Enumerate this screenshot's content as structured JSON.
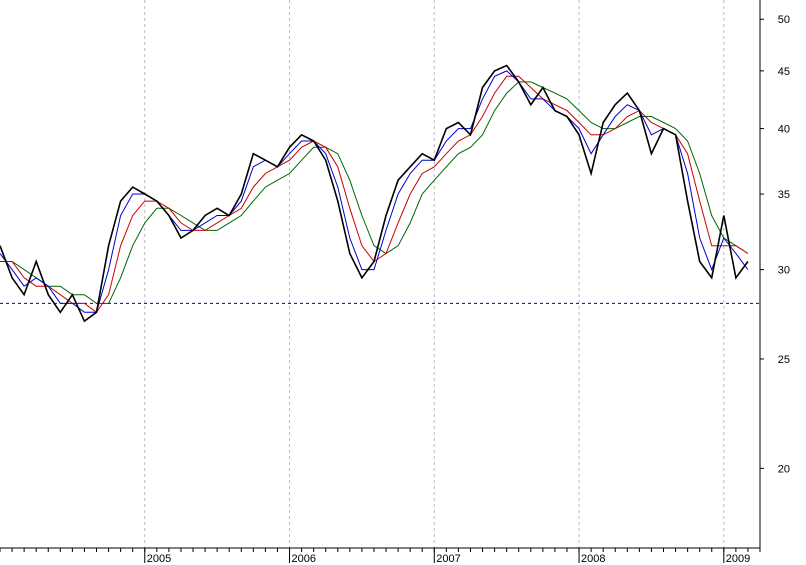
{
  "chart_data": {
    "type": "line",
    "title": "",
    "xlabel": "",
    "ylabel": "",
    "y_scale": "log",
    "ylim": [
      17,
      52
    ],
    "y_ticks": [
      20,
      25,
      30,
      35,
      40,
      45,
      50
    ],
    "x_ticks": [
      "2005",
      "2006",
      "2007",
      "2008",
      "2009"
    ],
    "x_range": [
      "2004-01",
      "2009-04"
    ],
    "grid": {
      "vertical": true,
      "horizontal": false
    },
    "reference_line": {
      "value": 28,
      "color": "#0000cc",
      "style": "dashed"
    },
    "series": [
      {
        "color": "#000000",
        "x": [
          "2004-01",
          "2004-02",
          "2004-03",
          "2004-04",
          "2004-05",
          "2004-06",
          "2004-07",
          "2004-08",
          "2004-09",
          "2004-10",
          "2004-11",
          "2004-12",
          "2005-01",
          "2005-02",
          "2005-03",
          "2005-04",
          "2005-05",
          "2005-06",
          "2005-07",
          "2005-08",
          "2005-09",
          "2005-10",
          "2005-11",
          "2005-12",
          "2006-01",
          "2006-02",
          "2006-03",
          "2006-04",
          "2006-05",
          "2006-06",
          "2006-07",
          "2006-08",
          "2006-09",
          "2006-10",
          "2006-11",
          "2006-12",
          "2007-01",
          "2007-02",
          "2007-03",
          "2007-04",
          "2007-05",
          "2007-06",
          "2007-07",
          "2007-08",
          "2007-09",
          "2007-10",
          "2007-11",
          "2007-12",
          "2008-01",
          "2008-02",
          "2008-03",
          "2008-04",
          "2008-05",
          "2008-06",
          "2008-07",
          "2008-08",
          "2008-09",
          "2008-10",
          "2008-11",
          "2008-12",
          "2009-01",
          "2009-02",
          "2009-03"
        ],
        "values": [
          31.5,
          29.5,
          28.5,
          30.5,
          28.5,
          27.5,
          28.5,
          27.0,
          27.5,
          31.5,
          34.5,
          35.5,
          35.0,
          34.5,
          33.5,
          32.0,
          32.5,
          33.5,
          34.0,
          33.5,
          35.0,
          38.0,
          37.5,
          37.0,
          38.5,
          39.5,
          39.0,
          37.5,
          34.5,
          31.0,
          29.5,
          30.5,
          33.5,
          36.0,
          37.0,
          38.0,
          37.5,
          40.0,
          40.5,
          39.5,
          43.5,
          45.0,
          45.5,
          44.0,
          42.0,
          43.5,
          41.5,
          41.0,
          39.5,
          36.5,
          40.5,
          42.0,
          43.0,
          41.5,
          38.0,
          40.0,
          39.5,
          34.5,
          30.5,
          29.5,
          33.5,
          29.5,
          30.5
        ]
      },
      {
        "color": "#0000cc",
        "values": [
          31.0,
          30.0,
          29.0,
          29.5,
          29.0,
          28.0,
          28.0,
          27.5,
          27.5,
          30.0,
          33.5,
          35.0,
          35.0,
          34.5,
          33.5,
          32.5,
          32.5,
          33.0,
          33.5,
          33.5,
          34.5,
          37.0,
          37.5,
          37.0,
          38.0,
          39.0,
          39.0,
          38.0,
          35.5,
          32.0,
          30.0,
          30.0,
          32.5,
          35.0,
          36.5,
          37.5,
          37.5,
          39.0,
          40.0,
          40.0,
          42.5,
          44.5,
          45.0,
          44.0,
          42.5,
          42.5,
          41.5,
          41.0,
          40.0,
          38.0,
          39.5,
          41.0,
          42.0,
          41.5,
          39.5,
          40.0,
          39.5,
          36.5,
          32.0,
          30.0,
          32.0,
          31.0,
          30.0
        ]
      },
      {
        "color": "#cc0000",
        "values": [
          30.5,
          30.5,
          29.5,
          29.0,
          29.0,
          28.5,
          28.0,
          28.0,
          27.5,
          28.5,
          31.5,
          33.5,
          34.5,
          34.5,
          34.0,
          33.0,
          32.5,
          32.5,
          33.0,
          33.5,
          34.0,
          35.5,
          36.5,
          37.0,
          37.5,
          38.5,
          39.0,
          38.5,
          37.0,
          34.0,
          31.5,
          30.5,
          31.0,
          33.0,
          35.0,
          36.5,
          37.0,
          38.0,
          39.0,
          39.5,
          41.0,
          43.0,
          44.5,
          44.5,
          43.5,
          42.5,
          42.0,
          41.5,
          40.5,
          39.5,
          39.5,
          40.0,
          41.0,
          41.5,
          40.5,
          40.0,
          39.5,
          38.0,
          34.5,
          31.5,
          31.5,
          31.5,
          31.0
        ]
      },
      {
        "color": "#006600",
        "values": [
          30.5,
          30.5,
          30.0,
          29.5,
          29.0,
          29.0,
          28.5,
          28.5,
          28.0,
          28.0,
          29.5,
          31.5,
          33.0,
          34.0,
          34.0,
          33.5,
          33.0,
          32.5,
          32.5,
          33.0,
          33.5,
          34.5,
          35.5,
          36.0,
          36.5,
          37.5,
          38.5,
          38.5,
          38.0,
          36.0,
          33.5,
          31.5,
          31.0,
          31.5,
          33.0,
          35.0,
          36.0,
          37.0,
          38.0,
          38.5,
          39.5,
          41.5,
          43.0,
          44.0,
          44.0,
          43.5,
          43.0,
          42.5,
          41.5,
          40.5,
          40.0,
          40.0,
          40.5,
          41.0,
          41.0,
          40.5,
          40.0,
          39.0,
          36.5,
          33.5,
          32.0,
          31.5,
          31.0
        ]
      }
    ]
  }
}
